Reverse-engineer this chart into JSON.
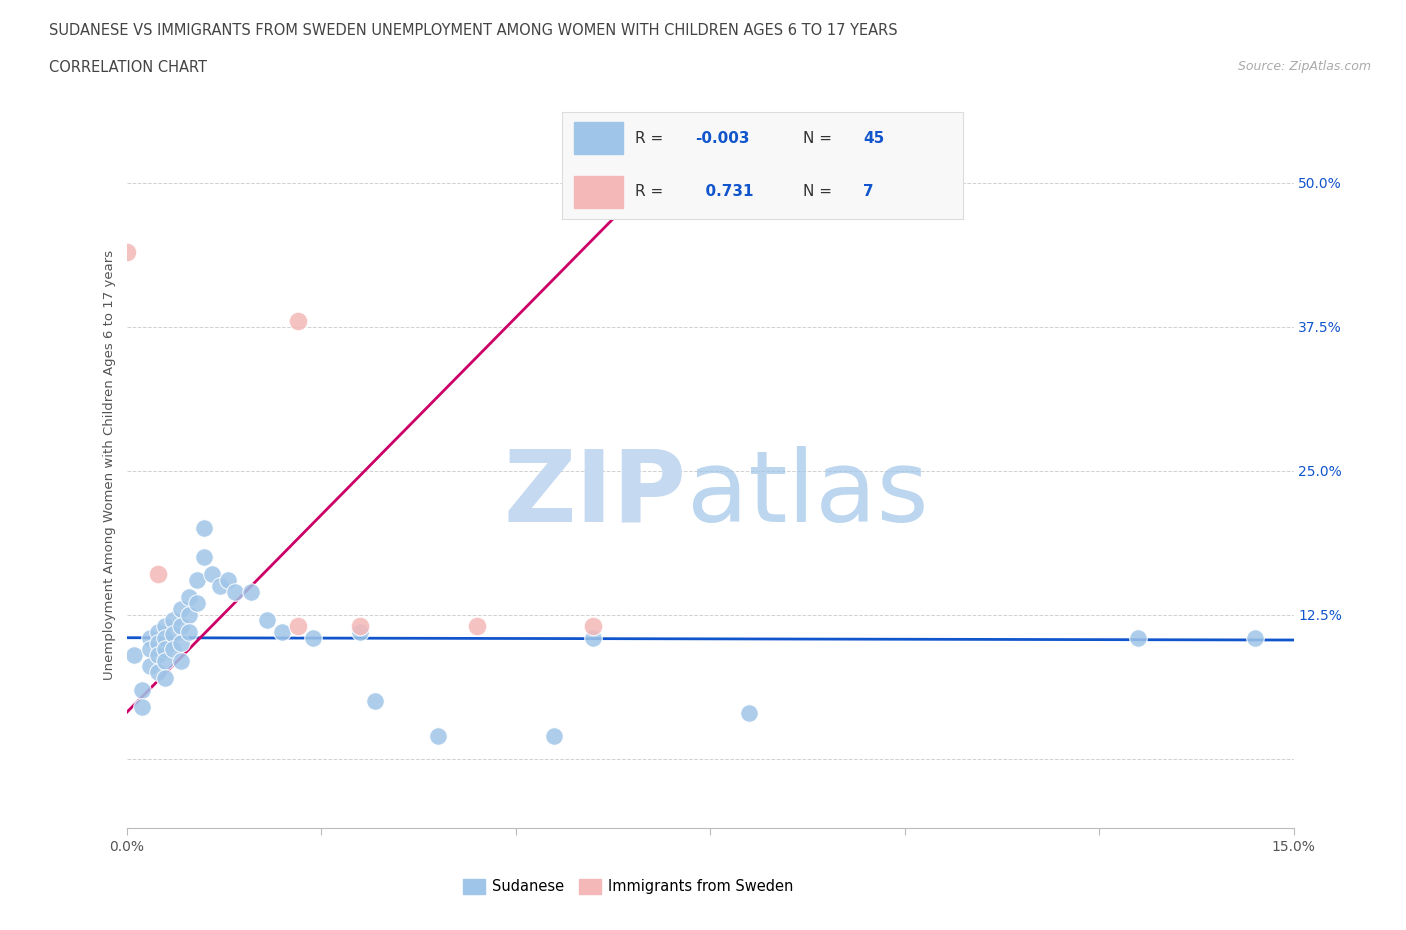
{
  "title_line1": "SUDANESE VS IMMIGRANTS FROM SWEDEN UNEMPLOYMENT AMONG WOMEN WITH CHILDREN AGES 6 TO 17 YEARS",
  "title_line2": "CORRELATION CHART",
  "source_text": "Source: ZipAtlas.com",
  "ylabel": "Unemployment Among Women with Children Ages 6 to 17 years",
  "xlim": [
    0.0,
    0.15
  ],
  "ylim": [
    -0.06,
    0.57
  ],
  "xticks": [
    0.0,
    0.025,
    0.05,
    0.075,
    0.1,
    0.125,
    0.15
  ],
  "xticklabels": [
    "0.0%",
    "",
    "",
    "",
    "",
    "",
    "15.0%"
  ],
  "ytick_positions": [
    0.0,
    0.125,
    0.25,
    0.375,
    0.5
  ],
  "ytick_labels": [
    "",
    "12.5%",
    "25.0%",
    "37.5%",
    "50.0%"
  ],
  "blue_scatter_x": [
    0.001,
    0.002,
    0.002,
    0.003,
    0.003,
    0.003,
    0.004,
    0.004,
    0.004,
    0.004,
    0.005,
    0.005,
    0.005,
    0.005,
    0.005,
    0.006,
    0.006,
    0.006,
    0.007,
    0.007,
    0.007,
    0.007,
    0.008,
    0.008,
    0.008,
    0.009,
    0.009,
    0.01,
    0.01,
    0.011,
    0.012,
    0.013,
    0.014,
    0.016,
    0.018,
    0.02,
    0.024,
    0.03,
    0.032,
    0.04,
    0.055,
    0.06,
    0.08,
    0.13,
    0.145
  ],
  "blue_scatter_y": [
    0.09,
    0.06,
    0.045,
    0.105,
    0.095,
    0.08,
    0.11,
    0.1,
    0.09,
    0.075,
    0.115,
    0.105,
    0.095,
    0.085,
    0.07,
    0.12,
    0.108,
    0.095,
    0.13,
    0.115,
    0.1,
    0.085,
    0.14,
    0.125,
    0.11,
    0.155,
    0.135,
    0.175,
    0.2,
    0.16,
    0.15,
    0.155,
    0.145,
    0.145,
    0.12,
    0.11,
    0.105,
    0.11,
    0.05,
    0.02,
    0.02,
    0.105,
    0.04,
    0.105,
    0.105
  ],
  "pink_scatter_x": [
    0.0,
    0.004,
    0.022,
    0.022,
    0.03,
    0.045,
    0.06
  ],
  "pink_scatter_y": [
    0.44,
    0.16,
    0.115,
    0.38,
    0.115,
    0.115,
    0.115
  ],
  "blue_line_x": [
    0.0,
    0.15
  ],
  "blue_line_y": [
    0.105,
    0.103
  ],
  "pink_line_x": [
    0.0,
    0.07
  ],
  "pink_line_y": [
    0.04,
    0.52
  ],
  "blue_color": "#9fc5e8",
  "pink_color": "#f4b8b8",
  "blue_line_color": "#1155cc",
  "pink_line_color": "#cc0066",
  "grid_color": "#cccccc",
  "background_color": "#ffffff",
  "watermark_zip_color": "#c5d9f1",
  "watermark_atlas_color": "#9fc5e8"
}
